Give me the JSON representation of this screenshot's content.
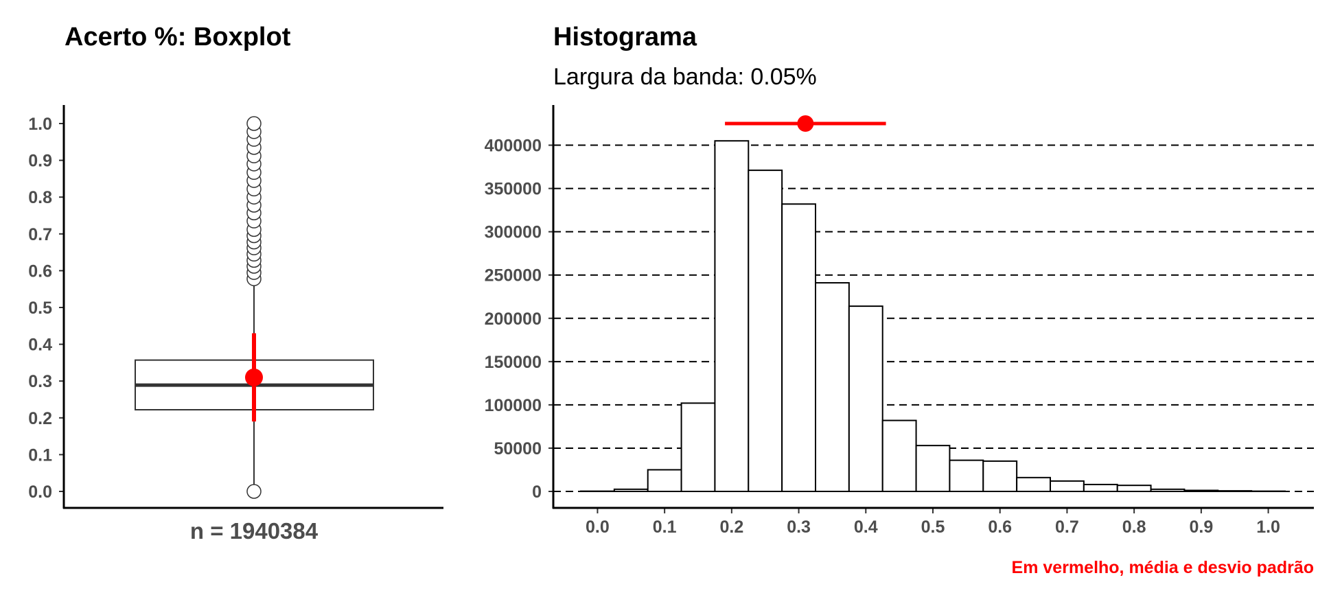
{
  "colors": {
    "accent": "#ff0000",
    "axis": "#000000",
    "tick_text": "#4d4d4d",
    "box_line": "#333333"
  },
  "chart_data": [
    {
      "type": "boxplot",
      "title": "Acerto %: Boxplot",
      "xlabel": "n = 1940384",
      "ylabel": "",
      "ylim": [
        0.0,
        1.0
      ],
      "yticks": [
        "0.0",
        "0.1",
        "0.2",
        "0.3",
        "0.4",
        "0.5",
        "0.6",
        "0.7",
        "0.8",
        "0.9",
        "1.0"
      ],
      "box": {
        "q1": 0.222,
        "median": 0.289,
        "q3": 0.357,
        "whisker_low": 0.0,
        "whisker_high": 0.56
      },
      "outliers": [
        0.0,
        0.578,
        0.595,
        0.612,
        0.628,
        0.645,
        0.662,
        0.678,
        0.695,
        0.712,
        0.735,
        0.757,
        0.778,
        0.8,
        0.822,
        0.845,
        0.867,
        0.89,
        0.912,
        0.935,
        0.957,
        0.978,
        1.0
      ],
      "mean": 0.31,
      "sd": 0.12,
      "grid": false
    },
    {
      "type": "bar",
      "title": "Histograma",
      "subtitle": "Largura da banda: 0.05%",
      "xlabel": "",
      "ylabel": "",
      "xlim": [
        -0.025,
        1.025
      ],
      "ylim": [
        0,
        425000
      ],
      "xticks": [
        "0.0",
        "0.1",
        "0.2",
        "0.3",
        "0.4",
        "0.5",
        "0.6",
        "0.7",
        "0.8",
        "0.9",
        "1.0"
      ],
      "yticks": [
        "0",
        "50000",
        "100000",
        "150000",
        "200000",
        "250000",
        "300000",
        "350000",
        "400000"
      ],
      "bin_width": 0.05,
      "bins": [
        {
          "center": 0.0,
          "value": 300
        },
        {
          "center": 0.05,
          "value": 2500
        },
        {
          "center": 0.1,
          "value": 25000
        },
        {
          "center": 0.15,
          "value": 102000
        },
        {
          "center": 0.2,
          "value": 405000
        },
        {
          "center": 0.25,
          "value": 371000
        },
        {
          "center": 0.3,
          "value": 332000
        },
        {
          "center": 0.35,
          "value": 241000
        },
        {
          "center": 0.4,
          "value": 214000
        },
        {
          "center": 0.45,
          "value": 82000
        },
        {
          "center": 0.5,
          "value": 53000
        },
        {
          "center": 0.55,
          "value": 36000
        },
        {
          "center": 0.6,
          "value": 35000
        },
        {
          "center": 0.65,
          "value": 16000
        },
        {
          "center": 0.7,
          "value": 12000
        },
        {
          "center": 0.75,
          "value": 8000
        },
        {
          "center": 0.8,
          "value": 7000
        },
        {
          "center": 0.85,
          "value": 2500
        },
        {
          "center": 0.9,
          "value": 1200
        },
        {
          "center": 0.95,
          "value": 700
        },
        {
          "center": 1.0,
          "value": 300
        }
      ],
      "mean": 0.31,
      "sd": 0.12,
      "mean_marker_y": 425000,
      "grid": "horizontal dashed",
      "caption": "Em vermelho, média e desvio padrão"
    }
  ]
}
